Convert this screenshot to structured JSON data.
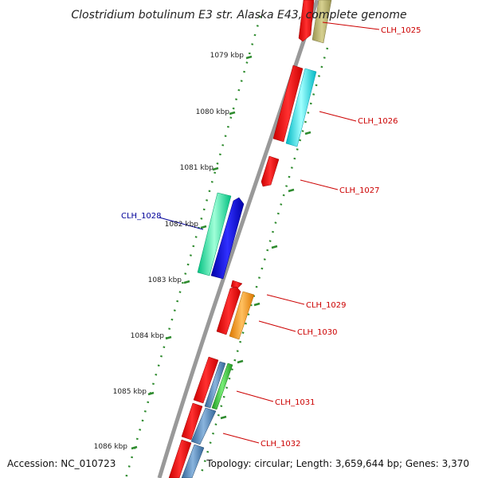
{
  "title": "Clostridium botulinum E3 str. Alaska E43, complete genome",
  "footer": {
    "accession": "Accession: NC_010723",
    "topology": "Topology: circular; Length: 3,659,644 bp; Genes: 3,370"
  },
  "kbp_ticks": [
    "1079 kbp",
    "1080 kbp",
    "1081 kbp",
    "1082 kbp",
    "1083 kbp",
    "1084 kbp",
    "1085 kbp",
    "1086 kbp"
  ],
  "gene_labels": [
    {
      "name": "CLH_1025",
      "color": "#cc0000"
    },
    {
      "name": "CLH_1026",
      "color": "#cc0000"
    },
    {
      "name": "CLH_1027",
      "color": "#cc0000"
    },
    {
      "name": "CLH_1028",
      "color": "#000099"
    },
    {
      "name": "CLH_1029",
      "color": "#cc0000"
    },
    {
      "name": "CLH_1030",
      "color": "#cc0000"
    },
    {
      "name": "CLH_1031",
      "color": "#cc0000"
    },
    {
      "name": "CLH_1032",
      "color": "#cc0000"
    }
  ],
  "colors": {
    "backbone": "#888888",
    "tick": "#2e8b2e",
    "forward_cds": "#ff0000",
    "khaki": "#b8b070",
    "cyan": "#00e5ee",
    "spring_green": "#00ee99",
    "blue": "#0000ee",
    "orange": "#ff9900",
    "green": "#33cc33",
    "steel_blue": "#4682b4"
  }
}
